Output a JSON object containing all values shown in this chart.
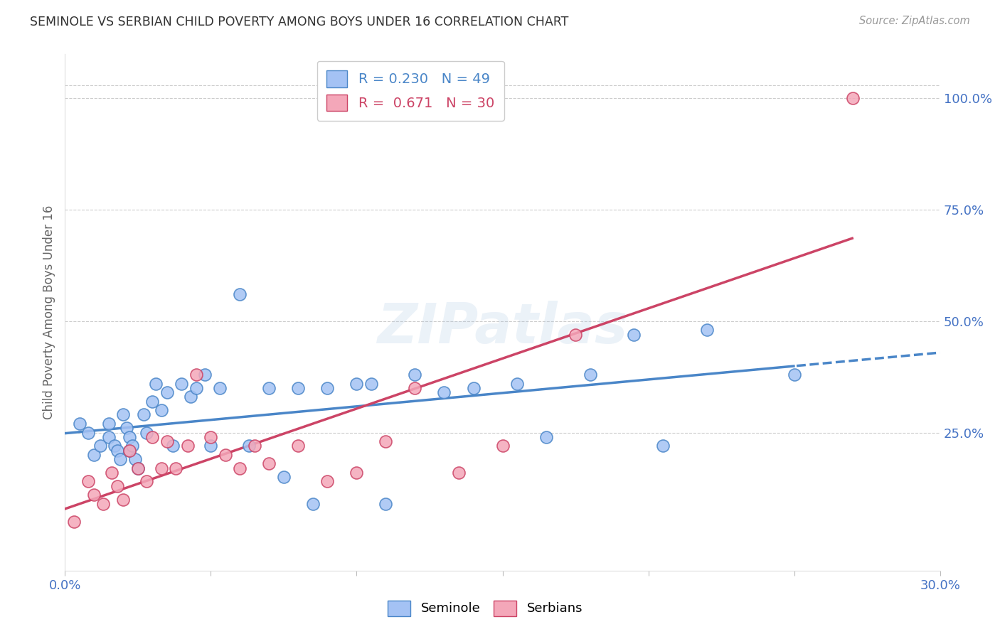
{
  "title": "SEMINOLE VS SERBIAN CHILD POVERTY AMONG BOYS UNDER 16 CORRELATION CHART",
  "source": "Source: ZipAtlas.com",
  "ylabel": "Child Poverty Among Boys Under 16",
  "xlim": [
    0.0,
    0.3
  ],
  "ylim": [
    -0.06,
    1.1
  ],
  "yticks_right": [
    0.25,
    0.5,
    0.75,
    1.0
  ],
  "ytick_right_labels": [
    "25.0%",
    "50.0%",
    "75.0%",
    "100.0%"
  ],
  "seminole_R": 0.23,
  "seminole_N": 49,
  "serbian_R": 0.671,
  "serbian_N": 30,
  "seminole_color": "#a4c2f4",
  "serbian_color": "#f4a7b9",
  "seminole_line_color": "#4a86c8",
  "serbian_line_color": "#cc4466",
  "background_color": "#ffffff",
  "grid_color": "#cccccc",
  "seminole_x": [
    0.005,
    0.008,
    0.01,
    0.012,
    0.015,
    0.015,
    0.017,
    0.018,
    0.019,
    0.02,
    0.021,
    0.022,
    0.022,
    0.023,
    0.024,
    0.025,
    0.027,
    0.028,
    0.03,
    0.031,
    0.033,
    0.035,
    0.037,
    0.04,
    0.043,
    0.045,
    0.048,
    0.05,
    0.053,
    0.06,
    0.063,
    0.07,
    0.075,
    0.08,
    0.085,
    0.09,
    0.1,
    0.105,
    0.11,
    0.12,
    0.13,
    0.14,
    0.155,
    0.165,
    0.18,
    0.195,
    0.205,
    0.22,
    0.25
  ],
  "seminole_y": [
    0.27,
    0.25,
    0.2,
    0.22,
    0.27,
    0.24,
    0.22,
    0.21,
    0.19,
    0.29,
    0.26,
    0.24,
    0.21,
    0.22,
    0.19,
    0.17,
    0.29,
    0.25,
    0.32,
    0.36,
    0.3,
    0.34,
    0.22,
    0.36,
    0.33,
    0.35,
    0.38,
    0.22,
    0.35,
    0.56,
    0.22,
    0.35,
    0.15,
    0.35,
    0.09,
    0.35,
    0.36,
    0.36,
    0.09,
    0.38,
    0.34,
    0.35,
    0.36,
    0.24,
    0.38,
    0.47,
    0.22,
    0.48,
    0.38
  ],
  "serbian_x": [
    0.003,
    0.008,
    0.01,
    0.013,
    0.016,
    0.018,
    0.02,
    0.022,
    0.025,
    0.028,
    0.03,
    0.033,
    0.035,
    0.038,
    0.042,
    0.045,
    0.05,
    0.055,
    0.06,
    0.065,
    0.07,
    0.08,
    0.09,
    0.1,
    0.11,
    0.12,
    0.135,
    0.15,
    0.175,
    0.27
  ],
  "serbian_y": [
    0.05,
    0.14,
    0.11,
    0.09,
    0.16,
    0.13,
    0.1,
    0.21,
    0.17,
    0.14,
    0.24,
    0.17,
    0.23,
    0.17,
    0.22,
    0.38,
    0.24,
    0.2,
    0.17,
    0.22,
    0.18,
    0.22,
    0.14,
    0.16,
    0.23,
    0.35,
    0.16,
    0.22,
    0.47,
    1.0
  ]
}
